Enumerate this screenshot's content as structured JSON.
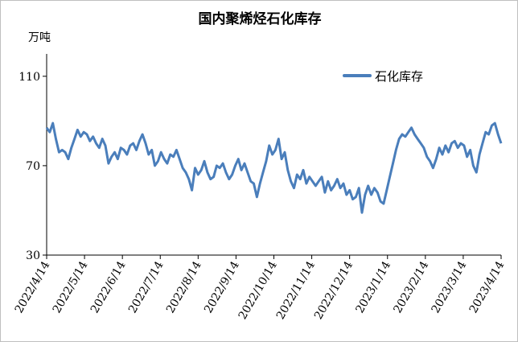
{
  "chart_data": {
    "type": "line",
    "title": "国内聚烯烃石化库存",
    "ylabel": "万吨",
    "xlabel": "",
    "ylim": [
      30,
      120
    ],
    "yticks": [
      30,
      70,
      110
    ],
    "grid": false,
    "legend_position": "top-right",
    "x_tick_labels": [
      "2022/4/14",
      "2022/5/14",
      "2022/6/14",
      "2022/7/14",
      "2022/8/14",
      "2022/9/14",
      "2022/10/14",
      "2022/11/14",
      "2022/12/14",
      "2023/1/14",
      "2023/2/14",
      "2023/3/14",
      "2023/4/14"
    ],
    "line_color": "#4a7ebb",
    "series": [
      {
        "name": "石化库存",
        "values": [
          87,
          85,
          89,
          82,
          76,
          77,
          76,
          73,
          78,
          82,
          86,
          83,
          85,
          84,
          81,
          83,
          80,
          78,
          82,
          79,
          71,
          74,
          76,
          73,
          78,
          77,
          75,
          79,
          80,
          77,
          81,
          84,
          80,
          75,
          77,
          70,
          72,
          76,
          73,
          71,
          75,
          74,
          77,
          73,
          69,
          67,
          64,
          59,
          69,
          66,
          68,
          72,
          67,
          64,
          65,
          70,
          69,
          71,
          67,
          64,
          66,
          70,
          73,
          68,
          71,
          67,
          63,
          62,
          56,
          62,
          67,
          72,
          79,
          75,
          77,
          82,
          73,
          76,
          68,
          63,
          60,
          66,
          64,
          68,
          62,
          65,
          63,
          61,
          63,
          65,
          58,
          63,
          59,
          61,
          64,
          60,
          62,
          57,
          59,
          55,
          56,
          60,
          49,
          57,
          61,
          57,
          60,
          58,
          54,
          53,
          59,
          65,
          71,
          77,
          82,
          84,
          83,
          85,
          87,
          84,
          82,
          80,
          78,
          74,
          72,
          69,
          73,
          78,
          75,
          79,
          76,
          80,
          81,
          78,
          80,
          79,
          74,
          77,
          70,
          67,
          75,
          80,
          85,
          84,
          88,
          89,
          84,
          80
        ]
      }
    ]
  }
}
